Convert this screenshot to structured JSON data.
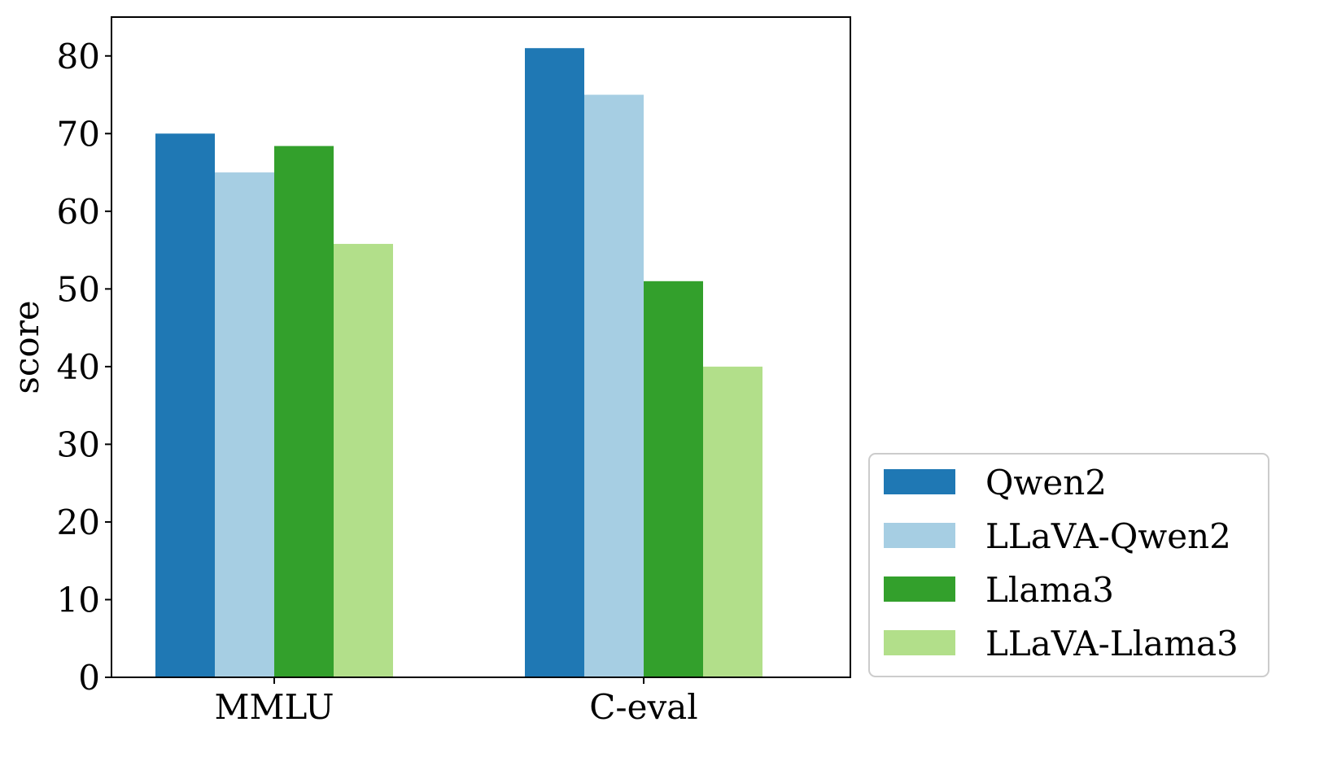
{
  "chart_data": {
    "type": "bar",
    "title": "",
    "xlabel": "",
    "ylabel": "score",
    "ylim": [
      0,
      85
    ],
    "yticks": [
      "0",
      "10",
      "20",
      "30",
      "40",
      "50",
      "60",
      "70",
      "80"
    ],
    "categories": [
      "MMLU",
      "C-eval"
    ],
    "grid": false,
    "legend_placement": "lower-right outside",
    "series": [
      {
        "name": "Qwen2",
        "color": "#1f78b4",
        "values": [
          70,
          81
        ]
      },
      {
        "name": "LLaVA-Qwen2",
        "color": "#a6cee3",
        "values": [
          65,
          75
        ]
      },
      {
        "name": "Llama3",
        "color": "#33a02c",
        "values": [
          68.4,
          51
        ]
      },
      {
        "name": "LLaVA-Llama3",
        "color": "#b2df8a",
        "values": [
          55.8,
          40
        ]
      }
    ]
  }
}
